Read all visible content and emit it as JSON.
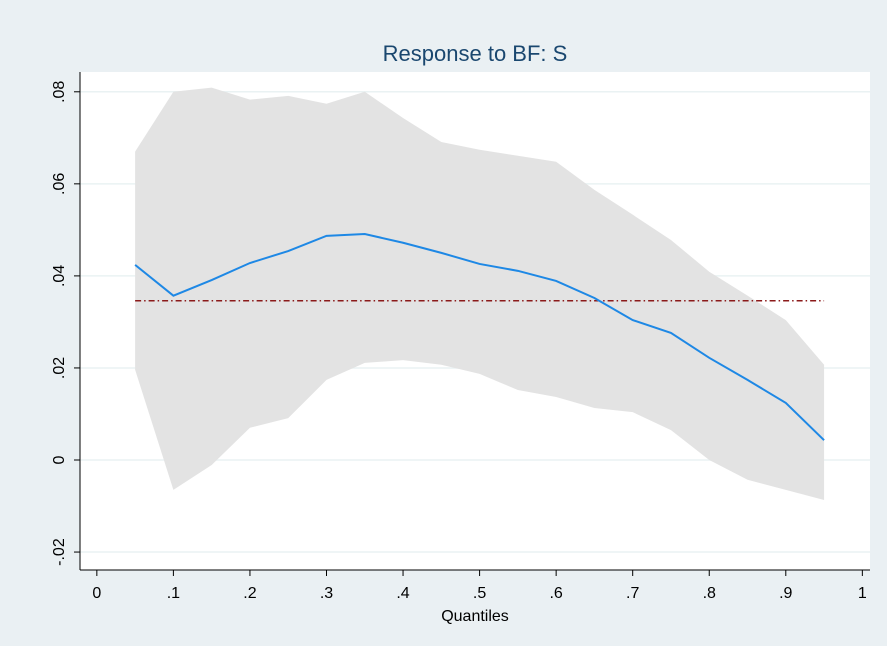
{
  "chart_data": {
    "type": "line",
    "title": "Response to BF: S",
    "xlabel": "Quantiles",
    "x": [
      0.05,
      0.1,
      0.15,
      0.2,
      0.25,
      0.3,
      0.35,
      0.4,
      0.45,
      0.5,
      0.55,
      0.6,
      0.65,
      0.7,
      0.75,
      0.8,
      0.85,
      0.9,
      0.95
    ],
    "line": {
      "color": "#1e88e5",
      "values": [
        0.0424,
        0.0357,
        0.0391,
        0.0428,
        0.0454,
        0.0487,
        0.0491,
        0.0472,
        0.045,
        0.0426,
        0.0411,
        0.0389,
        0.0352,
        0.0304,
        0.0276,
        0.0222,
        0.0174,
        0.0124,
        0.0043
      ]
    },
    "band": {
      "color": "#e3e3e3",
      "upper": [
        0.067,
        0.08,
        0.0809,
        0.0783,
        0.0791,
        0.0774,
        0.08,
        0.0743,
        0.0691,
        0.0674,
        0.0661,
        0.0648,
        0.0587,
        0.0533,
        0.0478,
        0.0409,
        0.0357,
        0.0304,
        0.0207
      ],
      "lower": [
        0.0196,
        -0.0065,
        -0.0011,
        0.007,
        0.0091,
        0.0174,
        0.0211,
        0.0217,
        0.0207,
        0.0187,
        0.0152,
        0.0137,
        0.0113,
        0.0104,
        0.0065,
        0.0,
        -0.0043,
        -0.0065,
        -0.0087
      ]
    },
    "reference_line": {
      "color": "#8b1a1a",
      "value": 0.0346
    },
    "xlim": [
      -0.022,
      1.01
    ],
    "ylim": [
      -0.0239,
      0.0843
    ],
    "xticks": [
      0,
      {
        "value": 0.1,
        "label": ".1"
      },
      {
        "value": 0.2,
        "label": ".2"
      },
      {
        "value": 0.3,
        "label": ".3"
      },
      {
        "value": 0.4,
        "label": ".4"
      },
      {
        "value": 0.5,
        "label": ".5"
      },
      {
        "value": 0.6,
        "label": ".6"
      },
      {
        "value": 0.7,
        "label": ".7"
      },
      {
        "value": 0.8,
        "label": ".8"
      },
      {
        "value": 0.9,
        "label": ".9"
      },
      1
    ],
    "yticks": [
      {
        "value": -0.02,
        "label": "-.02"
      },
      0,
      {
        "value": 0.02,
        "label": ".02"
      },
      {
        "value": 0.04,
        "label": ".04"
      },
      {
        "value": 0.06,
        "label": ".06"
      },
      {
        "value": 0.08,
        "label": ".08"
      }
    ],
    "grid": true
  }
}
